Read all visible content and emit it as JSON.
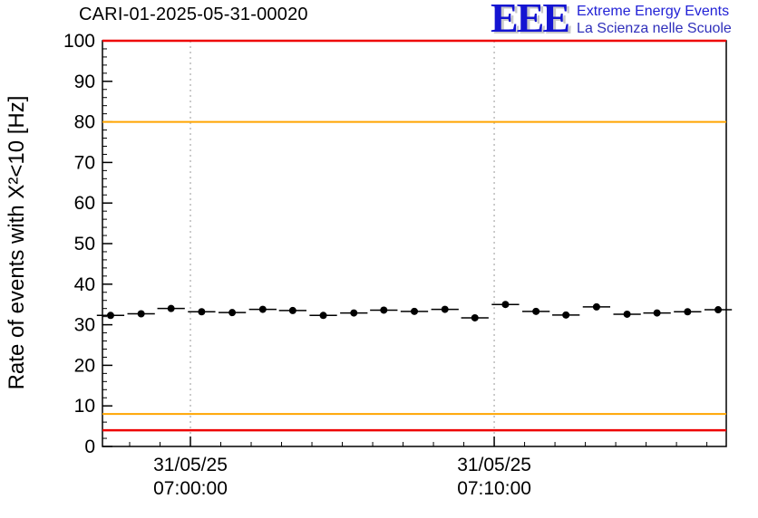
{
  "header": {
    "title": "CARI-01-2025-05-31-00020",
    "logo": {
      "acronym": "EEE",
      "line1": "Extreme Energy Events",
      "line2": "La Scienza nelle Scuole",
      "accent_color": "#1414d2"
    }
  },
  "chart_data": {
    "type": "scatter",
    "title": "CARI-01-2025-05-31-00020",
    "xlabel": "",
    "ylabel": "Rate of events with X²<10 [Hz]",
    "ylim": [
      0,
      100
    ],
    "y_ticks": [
      0,
      10,
      20,
      30,
      40,
      50,
      60,
      70,
      80,
      90,
      100
    ],
    "y_minor_step": 2,
    "x_ticks": [
      {
        "frac": 0.141,
        "label_line1": "31/05/25",
        "label_line2": "07:00:00"
      },
      {
        "frac": 0.628,
        "label_line1": "31/05/25",
        "label_line2": "07:10:00"
      }
    ],
    "x_minor_step_frac": 0.0487,
    "grid": {
      "vertical_dashed": true,
      "color": "#999999"
    },
    "frame_color": "#000000",
    "threshold_lines": [
      {
        "value": 100,
        "color": "#ee0000",
        "name": "upper-alarm"
      },
      {
        "value": 80,
        "color": "#ffa500",
        "name": "upper-warning"
      },
      {
        "value": 8,
        "color": "#ffa500",
        "name": "lower-warning"
      },
      {
        "value": 4,
        "color": "#ee0000",
        "name": "lower-alarm"
      }
    ],
    "series": [
      {
        "name": "event-rate",
        "marker": "filled-circle",
        "color": "#000000",
        "xerr_frac": 0.022,
        "yerr": 0.6,
        "x_frac": [
          0.013,
          0.062,
          0.11,
          0.159,
          0.208,
          0.257,
          0.305,
          0.354,
          0.403,
          0.451,
          0.5,
          0.549,
          0.597,
          0.646,
          0.695,
          0.743,
          0.792,
          0.841,
          0.889,
          0.938,
          0.987
        ],
        "y": [
          32.3,
          32.7,
          34.0,
          33.2,
          33.0,
          33.8,
          33.5,
          32.3,
          32.9,
          33.6,
          33.3,
          33.8,
          31.7,
          35.0,
          33.3,
          32.4,
          34.4,
          32.6,
          32.9,
          33.2,
          33.7
        ]
      }
    ]
  }
}
